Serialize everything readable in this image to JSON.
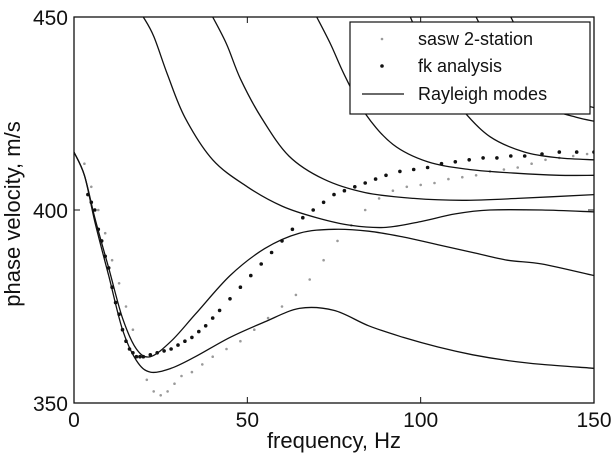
{
  "chart_data": {
    "type": "line",
    "xlabel": "frequency, Hz",
    "ylabel": "phase velocity, m/s",
    "xlim": [
      0,
      150
    ],
    "ylim": [
      350,
      450
    ],
    "xticks": [
      0,
      50,
      100,
      150
    ],
    "yticks": [
      350,
      400,
      450
    ],
    "grid": false,
    "legend_position": "top-right",
    "legend": [
      {
        "label": "sasw 2-station",
        "marker": "small-dot-grey"
      },
      {
        "label": "fk analysis",
        "marker": "dot-black"
      },
      {
        "label": "Rayleigh modes",
        "marker": "line-black"
      }
    ],
    "series": [
      {
        "name": "Rayleigh modes",
        "style": "line",
        "color": "#111111",
        "curves": [
          {
            "x": [
              0,
              3,
              6,
              10,
              14,
              18,
              22,
              28,
              35,
              45,
              55,
              65,
              75,
              85,
              95,
              105,
              115,
              125,
              135,
              150
            ],
            "y": [
              415,
              409,
              397,
              383,
              369,
              361,
              358,
              359,
              362,
              367,
              371,
              374.5,
              374,
              370,
              367,
              364.5,
              362.5,
              361,
              360,
              359
            ]
          },
          {
            "x": [
              0,
              3,
              6,
              10,
              14,
              18,
              22,
              28,
              35,
              45,
              55,
              65,
              75,
              85,
              95,
              105,
              115,
              125,
              135,
              150
            ],
            "y": [
              415,
              409,
              398,
              385,
              372,
              364,
              362,
              366,
              373,
              383,
              390,
              394,
              395,
              394.5,
              393,
              391,
              389,
              387,
              386,
              383
            ]
          },
          {
            "x": [
              20,
              23,
              27,
              32,
              40,
              50,
              60,
              70,
              80,
              90,
              100,
              110,
              120,
              135,
              150
            ],
            "y": [
              450,
              445,
              435,
              424,
              413,
              406,
              401,
              398,
              396,
              395.5,
              397,
              399,
              400,
              400,
              399.5
            ]
          },
          {
            "x": [
              40,
              44,
              48,
              54,
              62,
              72,
              84,
              98,
              112,
              128,
              150
            ],
            "y": [
              450,
              443,
              434,
              424,
              414,
              408,
              404.5,
              403,
              402.5,
              403,
              404
            ]
          },
          {
            "x": [
              70,
              74,
              78,
              84,
              92,
              102,
              114,
              128,
              140,
              150
            ],
            "y": [
              450,
              443,
              435,
              425,
              417,
              412.5,
              410.5,
              409.5,
              409,
              409
            ]
          },
          {
            "x": [
              97,
              101,
              106,
              112,
              120,
              130,
              140,
              150
            ],
            "y": [
              450,
              442,
              434,
              426,
              419,
              415,
              413.5,
              413
            ]
          },
          {
            "x": [
              116,
              120,
              125,
              131,
              138,
              145,
              150
            ],
            "y": [
              450,
              443,
              436,
              430,
              426,
              424,
              423
            ]
          },
          {
            "x": [
              126,
              130,
              135,
              140,
              145,
              150
            ],
            "y": [
              450,
              443,
              436,
              432,
              428,
              426.5
            ]
          }
        ]
      },
      {
        "name": "fk analysis",
        "style": "dots",
        "color": "#111111",
        "x": [
          4,
          5,
          6,
          7,
          8,
          9,
          10,
          11,
          12,
          13,
          14,
          15,
          16,
          17,
          18,
          19,
          20,
          22,
          24,
          26,
          28,
          30,
          32,
          34,
          36,
          38,
          40,
          42,
          45,
          48,
          51,
          54,
          57,
          60,
          63,
          66,
          69,
          72,
          75,
          78,
          81,
          84,
          87,
          90,
          94,
          98,
          102,
          106,
          110,
          114,
          118,
          122,
          126,
          130,
          135,
          140,
          145,
          150
        ],
        "y": [
          404,
          402,
          400,
          395,
          392,
          388,
          385,
          380,
          376,
          373,
          369,
          366,
          364,
          363,
          362,
          362,
          362,
          362.5,
          363,
          363.5,
          364,
          365,
          366,
          367,
          368.5,
          370,
          372,
          374,
          377,
          380,
          383,
          386,
          389,
          392,
          395,
          398,
          400,
          402,
          404,
          405,
          406,
          407,
          408,
          409,
          410,
          410.5,
          411,
          412,
          412.5,
          413,
          413.5,
          413.5,
          414,
          414,
          414.5,
          415,
          415,
          415
        ]
      },
      {
        "name": "sasw 2-station",
        "style": "small-dots",
        "color": "#9a9a9a",
        "x": [
          3,
          5,
          7,
          9,
          11,
          13,
          15,
          17,
          19,
          21,
          23,
          25,
          27,
          29,
          31,
          34,
          37,
          40,
          44,
          48,
          52,
          56,
          60,
          64,
          68,
          72,
          76,
          80,
          84,
          88,
          92,
          96,
          100,
          104,
          108,
          112,
          116,
          120,
          124,
          128,
          132,
          136,
          140,
          144,
          148,
          150
        ],
        "y": [
          412,
          406,
          400,
          394,
          387,
          381,
          375,
          369,
          362,
          356,
          353,
          352,
          353,
          355,
          357,
          358,
          360,
          362,
          364,
          366,
          369,
          372,
          375,
          378,
          382,
          387,
          392,
          396,
          400,
          403,
          405,
          406,
          406.5,
          407,
          408,
          408.5,
          409,
          410,
          410.5,
          411,
          412,
          413,
          413.5,
          414,
          414.5,
          415
        ]
      }
    ]
  }
}
